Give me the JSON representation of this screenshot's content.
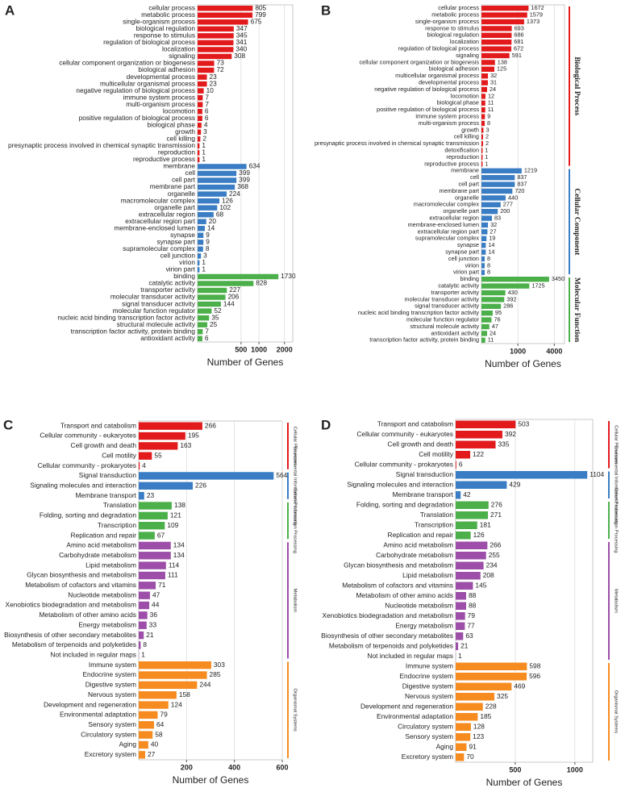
{
  "chart_data": [
    {
      "type": "bar",
      "orientation": "horizontal",
      "panel": "A",
      "xlabel": "Number of Genes",
      "scale": "sqrt",
      "xlim": [
        0,
        2400
      ],
      "xticks": [
        500,
        1000,
        2000
      ],
      "grid": true,
      "series": [
        {
          "color": "#e31a1c",
          "categories": [
            "cellular process",
            "metabolic process",
            "single-organism process",
            "biological regulation",
            "response to stimulus",
            "regulation of biological process",
            "localization",
            "signaling",
            "cellular component organization or biogenesis",
            "biological adhesion",
            "developmental process",
            "multicellular organismal process",
            "negative regulation of biological process",
            "immune system process",
            "multi-organism process",
            "locomotion",
            "positive regulation of biological process",
            "biological phase",
            "growth",
            "cell killing",
            "presynaptic process involved in chemical synaptic transmission",
            "reproduction",
            "reproductive process"
          ],
          "values": [
            805,
            799,
            675,
            347,
            345,
            341,
            340,
            308,
            73,
            72,
            23,
            23,
            10,
            7,
            7,
            6,
            6,
            4,
            3,
            2,
            1,
            1,
            1
          ]
        },
        {
          "color": "#3a7dc4",
          "categories": [
            "membrane",
            "cell",
            "cell part",
            "membrane part",
            "organelle",
            "macromolecular complex",
            "organelle part",
            "extracellular region",
            "extracellular region part",
            "membrane-enclosed lumen",
            "synapse",
            "synapse part",
            "supramolecular complex",
            "cell junction",
            "virion",
            "virion part"
          ],
          "values": [
            634,
            399,
            399,
            368,
            224,
            126,
            102,
            68,
            20,
            14,
            9,
            9,
            8,
            3,
            1,
            1
          ]
        },
        {
          "color": "#4cb04a",
          "categories": [
            "binding",
            "catalytic activity",
            "transporter activity",
            "molecular transducer activity",
            "signal transducer activity",
            "molecular function regulator",
            "nucleic acid binding transcription factor activity",
            "structural molecule activity",
            "transcription factor activity, protein binding",
            "antioxidant activity"
          ],
          "values": [
            1730,
            828,
            227,
            206,
            144,
            52,
            35,
            25,
            7,
            6
          ]
        }
      ]
    },
    {
      "type": "bar",
      "orientation": "horizontal",
      "panel": "B",
      "xlabel": "Number of Genes",
      "scale": "sqrt",
      "xlim": [
        0,
        5200
      ],
      "xticks": [
        1000,
        4000
      ],
      "grid": true,
      "series": [
        {
          "name": "Biological Process",
          "color": "#e31a1c",
          "categories": [
            "cellular process",
            "metabolic process",
            "single-organism process",
            "response to stimulus",
            "biological regulation",
            "localization",
            "regulation of biological process",
            "signaling",
            "cellular component organization or biogenesis",
            "biological adhesion",
            "multicellular organismal process",
            "developmental process",
            "negative regulation of biological process",
            "locomotion",
            "biological phase",
            "positive regulation of biological process",
            "immune system process",
            "multi-organism process",
            "growth",
            "cell killing",
            "presynaptic process involved in chemical synaptic transmission",
            "detoxification",
            "reproduction",
            "reproductive process"
          ],
          "values": [
            1672,
            1579,
            1373,
            693,
            686,
            681,
            672,
            591,
            138,
            125,
            32,
            31,
            24,
            12,
            11,
            11,
            9,
            8,
            3,
            2,
            2,
            1,
            1,
            1
          ]
        },
        {
          "name": "Cellular Component",
          "color": "#3a7dc4",
          "categories": [
            "membrane",
            "cell",
            "cell part",
            "membrane part",
            "organelle",
            "macromolecular complex",
            "organelle part",
            "extracellular region",
            "membrane-enclosed lumen",
            "extracellular region part",
            "supramolecular complex",
            "synapse",
            "synapse part",
            "cell junction",
            "virion",
            "virion part"
          ],
          "values": [
            1219,
            837,
            837,
            720,
            440,
            277,
            200,
            83,
            32,
            27,
            19,
            14,
            14,
            8,
            8,
            8
          ]
        },
        {
          "name": "Molecular Function",
          "color": "#4cb04a",
          "categories": [
            "binding",
            "catalytic activity",
            "transporter activity",
            "molecular transducer activity",
            "signal transducer activity",
            "nucleic acid binding transcription factor activity",
            "molecular function regulator",
            "structural molecule activity",
            "antioxidant activity",
            "transcription factor activity, protein binding"
          ],
          "values": [
            3450,
            1725,
            430,
            392,
            286,
            95,
            76,
            47,
            24,
            11
          ]
        }
      ]
    },
    {
      "type": "bar",
      "orientation": "horizontal",
      "panel": "C",
      "xlabel": "Number of Genes",
      "scale": "linear",
      "xlim": [
        0,
        600
      ],
      "xticks": [
        200,
        400,
        600
      ],
      "grid": true,
      "series": [
        {
          "name": "Cellular Processes",
          "color": "#e31a1c",
          "categories": [
            "Transport and catabolism",
            "Cellular community - eukaryotes",
            "Cell growth and death",
            "Cell motility",
            "Cellular community - prokaryotes"
          ],
          "values": [
            266,
            195,
            163,
            55,
            4
          ]
        },
        {
          "name": "Environmental Information Processing",
          "color": "#3a7dc4",
          "categories": [
            "Signal transduction",
            "Signaling molecules and interaction",
            "Membrane transport"
          ],
          "values": [
            564,
            226,
            23
          ]
        },
        {
          "name": "Genetic Information Processing",
          "color": "#4cb04a",
          "categories": [
            "Translation",
            "Folding, sorting and degradation",
            "Transcription",
            "Replication and repair"
          ],
          "values": [
            138,
            121,
            109,
            67
          ]
        },
        {
          "name": "Metabolism",
          "color": "#9c4ea8",
          "categories": [
            "Amino acid metabolism",
            "Carbohydrate metabolism",
            "Lipid metabolism",
            "Glycan biosynthesis and metabolism",
            "Metabolism of cofactors and vitamins",
            "Nucleotide metabolism",
            "Xenobiotics biodegradation and metabolism",
            "Metabolism of other amino acids",
            "Energy metabolism",
            "Biosynthesis of other secondary metabolites",
            "Metabolism of terpenoids and polyketides",
            "Not included in regular maps"
          ],
          "values": [
            134,
            134,
            114,
            111,
            71,
            47,
            44,
            36,
            33,
            21,
            8,
            1
          ]
        },
        {
          "name": "Organismal Systems",
          "color": "#f68b1f",
          "categories": [
            "Immune system",
            "Endocrine system",
            "Digestive system",
            "Nervous system",
            "Development and regeneration",
            "Environmental adaptation",
            "Sensory system",
            "Circulatory system",
            "Aging",
            "Excretory system"
          ],
          "values": [
            303,
            285,
            244,
            158,
            124,
            79,
            64,
            58,
            40,
            27
          ]
        }
      ]
    },
    {
      "type": "bar",
      "orientation": "horizontal",
      "panel": "D",
      "xlabel": "Number of Genes",
      "scale": "linear",
      "xlim": [
        0,
        1150
      ],
      "xticks": [
        500,
        1000
      ],
      "grid": true,
      "series": [
        {
          "name": "Cellular Processes",
          "color": "#e31a1c",
          "categories": [
            "Transport and catabolism",
            "Cellular community - eukaryotes",
            "Cell growth and death",
            "Cell motility",
            "Cellular community - prokaryotes"
          ],
          "values": [
            503,
            392,
            335,
            122,
            6
          ]
        },
        {
          "name": "Environmental Information Processing",
          "color": "#3a7dc4",
          "categories": [
            "Signal transduction",
            "Signaling molecules and interaction",
            "Membrane transport"
          ],
          "values": [
            1104,
            429,
            42
          ]
        },
        {
          "name": "Genetic Information Processing",
          "color": "#4cb04a",
          "categories": [
            "Folding, sorting and degradation",
            "Translation",
            "Transcription",
            "Replication and repair"
          ],
          "values": [
            276,
            271,
            181,
            126
          ]
        },
        {
          "name": "Metabolism",
          "color": "#9c4ea8",
          "categories": [
            "Amino acid metabolism",
            "Carbohydrate metabolism",
            "Glycan biosynthesis and metabolism",
            "Lipid metabolism",
            "Metabolism of cofactors and vitamins",
            "Metabolism of other amino acids",
            "Nucleotide metabolism",
            "Xenobiotics biodegradation and metabolism",
            "Energy metabolism",
            "Biosynthesis of other secondary metabolites",
            "Metabolism of terpenoids and polyketides",
            "Not included in regular maps"
          ],
          "values": [
            266,
            255,
            234,
            208,
            145,
            88,
            88,
            79,
            77,
            63,
            21,
            1
          ]
        },
        {
          "name": "Organismal Systems",
          "color": "#f68b1f",
          "categories": [
            "Immune system",
            "Endocrine system",
            "Digestive system",
            "Nervous system",
            "Development and regeneration",
            "Environmental adaptation",
            "Circulatory system",
            "Sensory system",
            "Aging",
            "Excretory system"
          ],
          "values": [
            598,
            596,
            469,
            325,
            228,
            185,
            128,
            123,
            91,
            70
          ]
        }
      ]
    }
  ]
}
